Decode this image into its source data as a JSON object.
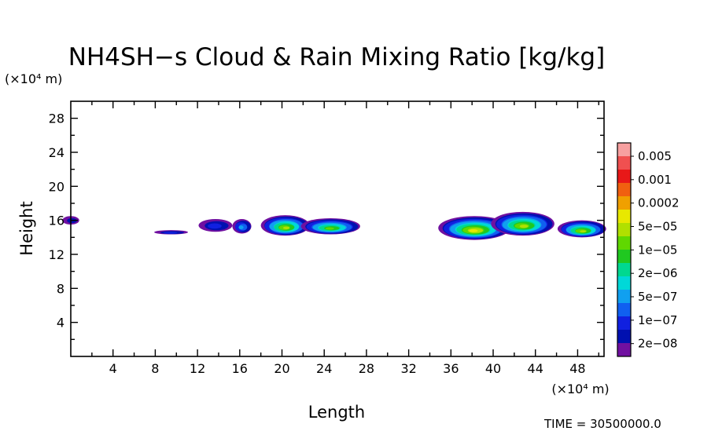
{
  "chart_data": {
    "type": "heatmap",
    "title": "NH4SH−s Cloud & Rain Mixing Ratio [kg/kg]",
    "xlabel": "Length",
    "ylabel": "Height",
    "x_unit": "(×10⁴ m)",
    "y_unit": "(×10⁴ m)",
    "xlim": [
      0,
      50.5
    ],
    "ylim": [
      0,
      30
    ],
    "x_ticks": [
      "4",
      "8",
      "12",
      "16",
      "20",
      "24",
      "28",
      "32",
      "36",
      "40",
      "44",
      "48"
    ],
    "y_ticks": [
      "4",
      "8",
      "12",
      "16",
      "20",
      "24",
      "28"
    ],
    "x_tick_values": [
      4,
      8,
      12,
      16,
      20,
      24,
      28,
      32,
      36,
      40,
      44,
      48
    ],
    "y_tick_values": [
      4,
      8,
      12,
      16,
      20,
      24,
      28
    ],
    "colorbar": {
      "labels": [
        "0.005",
        "0.001",
        "0.0002",
        "5e−05",
        "1e−05",
        "2e−06",
        "5e−07",
        "1e−07",
        "2e−08"
      ],
      "colors": [
        "#f7a0a0",
        "#f05050",
        "#e81818",
        "#f06010",
        "#f0a000",
        "#e8e800",
        "#b0e000",
        "#60d800",
        "#20c820",
        "#00d890",
        "#00d8d8",
        "#10a0f0",
        "#1060f0",
        "#1020e0",
        "#0010b0",
        "#7010a0"
      ]
    },
    "cloud_regions": [
      {
        "x": 0.0,
        "y": 16.0,
        "w": 1.6,
        "h": 1.0,
        "level": 1
      },
      {
        "x": 9.5,
        "y": 14.6,
        "w": 3.2,
        "h": 0.5,
        "level": 2
      },
      {
        "x": 13.7,
        "y": 15.4,
        "w": 3.2,
        "h": 1.5,
        "level": 2
      },
      {
        "x": 16.2,
        "y": 15.3,
        "w": 1.8,
        "h": 1.7,
        "level": 4
      },
      {
        "x": 20.3,
        "y": 15.4,
        "w": 4.6,
        "h": 2.4,
        "level": 9
      },
      {
        "x": 24.6,
        "y": 15.3,
        "w": 5.6,
        "h": 1.9,
        "level": 8
      },
      {
        "x": 38.2,
        "y": 15.1,
        "w": 6.8,
        "h": 2.8,
        "level": 10
      },
      {
        "x": 42.8,
        "y": 15.6,
        "w": 6.0,
        "h": 2.8,
        "level": 9
      },
      {
        "x": 48.4,
        "y": 15.0,
        "w": 4.6,
        "h": 2.0,
        "level": 9
      }
    ]
  },
  "footer": {
    "time_label": "TIME = 30500000.0"
  }
}
